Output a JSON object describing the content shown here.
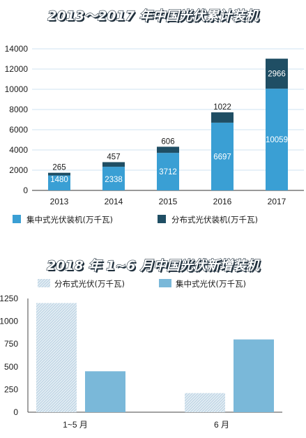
{
  "chart_data": [
    {
      "type": "bar",
      "stacked": true,
      "title": "2013～2017 年中国光伏累计装机",
      "categories": [
        "2013",
        "2014",
        "2015",
        "2016",
        "2017"
      ],
      "series": [
        {
          "name": "集中式光伏装机(万千瓦)",
          "values": [
            1480,
            2338,
            3712,
            6697,
            10059
          ],
          "color": "#3a9fd4"
        },
        {
          "name": "分布式光伏装机(万千瓦)",
          "values": [
            265,
            457,
            606,
            1022,
            2966
          ],
          "color": "#1f4e64"
        }
      ],
      "ylim": [
        0,
        14000
      ],
      "yticks": [
        "0",
        "2000",
        "4000",
        "6000",
        "8000",
        "10000",
        "12000",
        "14000"
      ],
      "ytick_values": [
        0,
        2000,
        4000,
        6000,
        8000,
        10000,
        12000,
        14000
      ],
      "grid": true,
      "legend": "bottom"
    },
    {
      "type": "bar",
      "title": "2018 年 1~6 月中国光伏新增装机",
      "categories": [
        "1~5 月",
        "6 月"
      ],
      "series": [
        {
          "name": "分布式光伏(万千瓦)",
          "values": [
            1200,
            210
          ],
          "color": "#cfe0ec",
          "pattern": "hatch"
        },
        {
          "name": "集中式光伏(万千瓦)",
          "values": [
            450,
            800
          ],
          "color": "#7ab8d9"
        }
      ],
      "ylim": [
        0,
        1250
      ],
      "yticks": [
        "0",
        "250",
        "500",
        "750",
        "1000",
        "1250"
      ],
      "ytick_values": [
        0,
        250,
        500,
        750,
        1000,
        1250
      ],
      "grid": false,
      "legend": "top"
    }
  ]
}
